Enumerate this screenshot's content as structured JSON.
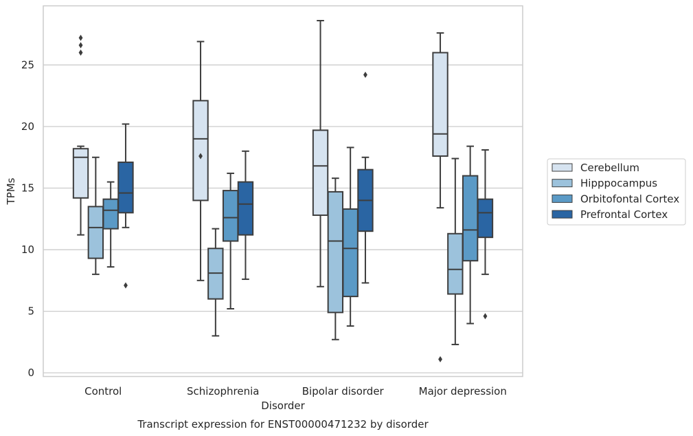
{
  "chart_data": {
    "type": "boxplot",
    "caption": "Transcript expression for ENST00000471232 by disorder",
    "xlabel": "Disorder",
    "ylabel": "TPMs",
    "categories": [
      "Control",
      "Schizophrenia",
      "Bipolar disorder",
      "Major depression"
    ],
    "ylim": [
      -0.3,
      29.8
    ],
    "yticks": [
      0,
      5,
      10,
      15,
      20,
      25
    ],
    "grid": "horizontal",
    "legend_position": "right",
    "series": [
      {
        "name": "Cerebellum",
        "color": "#d6e3f0",
        "boxes": [
          {
            "whislo": 11.2,
            "q1": 14.2,
            "med": 17.5,
            "q3": 18.2,
            "whishi": 18.4,
            "fliers": [
              26.0,
              26.6,
              27.2
            ]
          },
          {
            "whislo": 7.5,
            "q1": 14.0,
            "med": 19.0,
            "q3": 22.1,
            "whishi": 26.9,
            "fliers": [
              17.6
            ]
          },
          {
            "whislo": 7.0,
            "q1": 12.8,
            "med": 16.8,
            "q3": 19.7,
            "whishi": 28.6,
            "fliers": []
          },
          {
            "whislo": 13.4,
            "q1": 17.6,
            "med": 19.4,
            "q3": 26.0,
            "whishi": 27.6,
            "fliers": [
              1.1
            ]
          }
        ]
      },
      {
        "name": "Hipppocampus",
        "color": "#9cc2dc",
        "boxes": [
          {
            "whislo": 8.0,
            "q1": 9.3,
            "med": 11.8,
            "q3": 13.5,
            "whishi": 17.5,
            "fliers": []
          },
          {
            "whislo": 3.0,
            "q1": 6.0,
            "med": 8.1,
            "q3": 10.1,
            "whishi": 11.7,
            "fliers": []
          },
          {
            "whislo": 2.7,
            "q1": 4.9,
            "med": 10.7,
            "q3": 14.7,
            "whishi": 15.8,
            "fliers": []
          },
          {
            "whislo": 2.3,
            "q1": 6.4,
            "med": 8.4,
            "q3": 11.3,
            "whishi": 17.4,
            "fliers": []
          }
        ]
      },
      {
        "name": "Orbitofontal Cortex",
        "color": "#5b9ac6",
        "boxes": [
          {
            "whislo": 8.6,
            "q1": 11.7,
            "med": 13.2,
            "q3": 14.1,
            "whishi": 15.5,
            "fliers": []
          },
          {
            "whislo": 5.2,
            "q1": 10.7,
            "med": 12.6,
            "q3": 14.8,
            "whishi": 16.2,
            "fliers": []
          },
          {
            "whislo": 3.8,
            "q1": 6.2,
            "med": 10.1,
            "q3": 13.3,
            "whishi": 18.3,
            "fliers": []
          },
          {
            "whislo": 4.0,
            "q1": 9.1,
            "med": 11.6,
            "q3": 16.0,
            "whishi": 18.4,
            "fliers": []
          }
        ]
      },
      {
        "name": "Prefrontal Cortex",
        "color": "#2a65a3",
        "boxes": [
          {
            "whislo": 11.8,
            "q1": 13.0,
            "med": 14.6,
            "q3": 17.1,
            "whishi": 20.2,
            "fliers": [
              7.1
            ]
          },
          {
            "whislo": 7.6,
            "q1": 11.2,
            "med": 13.7,
            "q3": 15.5,
            "whishi": 18.0,
            "fliers": []
          },
          {
            "whislo": 7.3,
            "q1": 11.5,
            "med": 14.0,
            "q3": 16.5,
            "whishi": 17.5,
            "fliers": [
              24.2
            ]
          },
          {
            "whislo": 8.0,
            "q1": 11.0,
            "med": 13.0,
            "q3": 14.1,
            "whishi": 18.1,
            "fliers": [
              4.6
            ]
          }
        ]
      }
    ]
  }
}
